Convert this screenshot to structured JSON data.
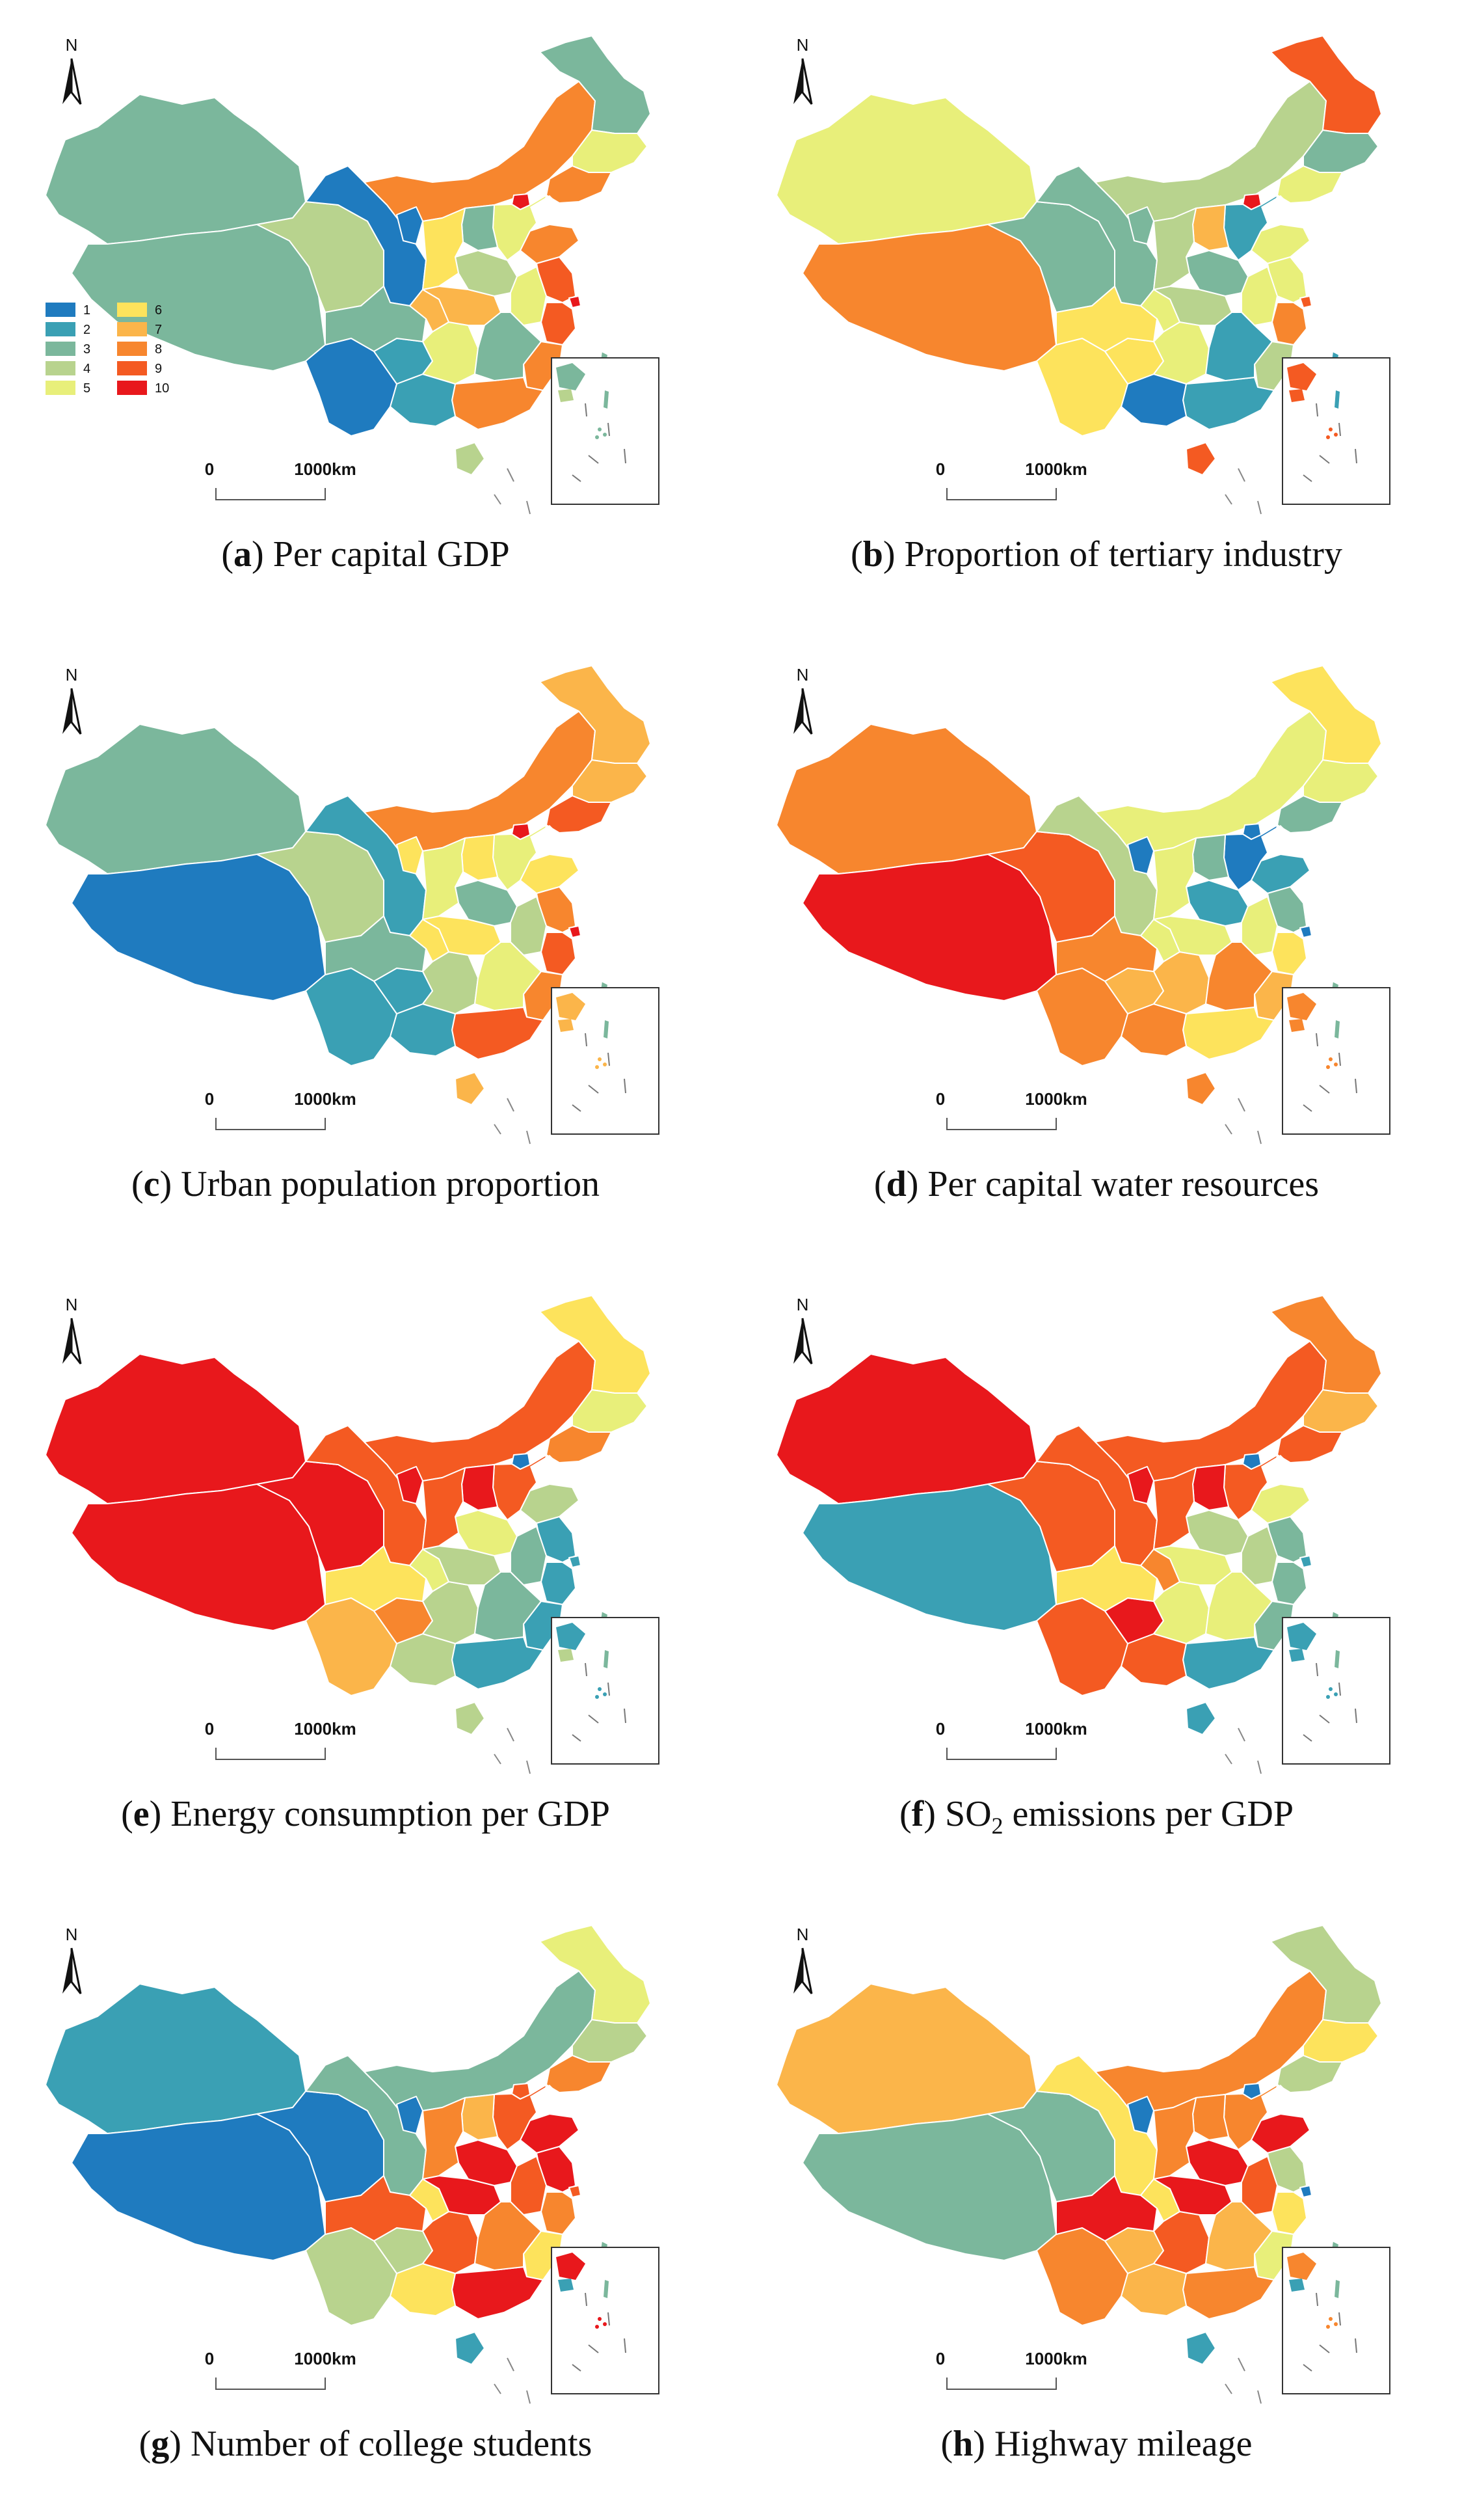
{
  "figure": {
    "north_label": "N",
    "scale_zero": "0",
    "scale_label": "1000km",
    "legend": {
      "classes": [
        "1",
        "2",
        "3",
        "4",
        "5",
        "6",
        "7",
        "8",
        "9",
        "10"
      ],
      "colors": [
        "#1f7bbf",
        "#3aa0b4",
        "#7bb79c",
        "#b8d38e",
        "#e8ef7a",
        "#fde35c",
        "#fbb54a",
        "#f7862e",
        "#f45a22",
        "#e8181c"
      ]
    }
  },
  "panels": [
    {
      "id": "a",
      "letter": "a",
      "title": "Per capital GDP",
      "has_legend": true,
      "classes": {
        "xinjiang": 3,
        "tibet": 3,
        "qinghai": 4,
        "gansu": 1,
        "innermongolia": 8,
        "heilongjiang": 3,
        "jilin": 5,
        "liaoning": 8,
        "beijing": 10,
        "hebei": 5,
        "shandong": 8,
        "jiangsu": 9,
        "zhejiang": 9,
        "shanghai": 10,
        "fujian": 8,
        "guangdong": 8,
        "guangxi": 2,
        "yunnan": 1,
        "guizhou": 2,
        "sichuan": 3,
        "chongqing": 7,
        "hunan": 5,
        "hubei": 7,
        "henan": 4,
        "shanxi": 3,
        "shaanxi": 6,
        "ningxia": 1,
        "anhui": 5,
        "jiangxi": 3,
        "hainan": 4,
        "taiwan": 3,
        "inset": 3
      }
    },
    {
      "id": "b",
      "letter": "b",
      "title": "Proportion of tertiary industry",
      "has_legend": false,
      "classes": {
        "xinjiang": 5,
        "tibet": 8,
        "qinghai": 3,
        "gansu": 3,
        "innermongolia": 4,
        "heilongjiang": 9,
        "jilin": 3,
        "liaoning": 5,
        "beijing": 10,
        "hebei": 2,
        "shandong": 5,
        "jiangsu": 5,
        "zhejiang": 8,
        "shanghai": 9,
        "fujian": 4,
        "guangdong": 2,
        "guangxi": 1,
        "yunnan": 6,
        "guizhou": 6,
        "sichuan": 6,
        "chongqing": 5,
        "hunan": 5,
        "hubei": 4,
        "henan": 3,
        "shanxi": 7,
        "shaanxi": 4,
        "ningxia": 3,
        "anhui": 5,
        "jiangxi": 2,
        "hainan": 9,
        "taiwan": 2,
        "inset": 9
      }
    },
    {
      "id": "c",
      "letter": "c",
      "title": "Urban population proportion",
      "has_legend": false,
      "classes": {
        "xinjiang": 3,
        "tibet": 1,
        "qinghai": 4,
        "gansu": 2,
        "innermongolia": 8,
        "heilongjiang": 7,
        "jilin": 7,
        "liaoning": 9,
        "beijing": 10,
        "hebei": 5,
        "shandong": 6,
        "jiangsu": 8,
        "zhejiang": 9,
        "shanghai": 10,
        "fujian": 8,
        "guangdong": 9,
        "guangxi": 2,
        "yunnan": 2,
        "guizhou": 2,
        "sichuan": 3,
        "chongqing": 6,
        "hunan": 4,
        "hubei": 6,
        "henan": 3,
        "shanxi": 6,
        "shaanxi": 5,
        "ningxia": 6,
        "anhui": 4,
        "jiangxi": 5,
        "hainan": 7,
        "taiwan": 3,
        "inset": 7
      }
    },
    {
      "id": "d",
      "letter": "d",
      "title": "Per capital water resources",
      "has_legend": false,
      "classes": {
        "xinjiang": 8,
        "tibet": 10,
        "qinghai": 9,
        "gansu": 4,
        "innermongolia": 5,
        "heilongjiang": 6,
        "jilin": 5,
        "liaoning": 3,
        "beijing": 1,
        "hebei": 1,
        "shandong": 2,
        "jiangsu": 3,
        "zhejiang": 6,
        "shanghai": 1,
        "fujian": 7,
        "guangdong": 6,
        "guangxi": 8,
        "yunnan": 8,
        "guizhou": 7,
        "sichuan": 8,
        "chongqing": 5,
        "hunan": 7,
        "hubei": 5,
        "henan": 2,
        "shanxi": 3,
        "shaanxi": 5,
        "ningxia": 1,
        "anhui": 5,
        "jiangxi": 8,
        "hainan": 8,
        "taiwan": 3,
        "inset": 8
      }
    },
    {
      "id": "e",
      "letter": "e",
      "title": "Energy consumption per GDP",
      "has_legend": false,
      "classes": {
        "xinjiang": 10,
        "tibet": 10,
        "qinghai": 10,
        "gansu": 9,
        "innermongolia": 9,
        "heilongjiang": 6,
        "jilin": 5,
        "liaoning": 8,
        "beijing": 1,
        "hebei": 9,
        "shandong": 4,
        "jiangsu": 2,
        "zhejiang": 2,
        "shanghai": 2,
        "fujian": 2,
        "guangdong": 2,
        "guangxi": 4,
        "yunnan": 7,
        "guizhou": 8,
        "sichuan": 6,
        "chongqing": 5,
        "hunan": 4,
        "hubei": 4,
        "henan": 5,
        "shanxi": 10,
        "shaanxi": 9,
        "ningxia": 10,
        "anhui": 3,
        "jiangxi": 3,
        "hainan": 4,
        "taiwan": 3,
        "inset": 2
      }
    },
    {
      "id": "f",
      "letter": "f",
      "title_pre": "SO",
      "title_sub": "2",
      "title_post": " emissions per GDP",
      "has_legend": false,
      "classes": {
        "xinjiang": 10,
        "tibet": 2,
        "qinghai": 9,
        "gansu": 9,
        "innermongolia": 9,
        "heilongjiang": 8,
        "jilin": 7,
        "liaoning": 9,
        "beijing": 1,
        "hebei": 9,
        "shandong": 5,
        "jiangsu": 3,
        "zhejiang": 3,
        "shanghai": 2,
        "fujian": 3,
        "guangdong": 2,
        "guangxi": 9,
        "yunnan": 9,
        "guizhou": 10,
        "sichuan": 6,
        "chongqing": 8,
        "hunan": 5,
        "hubei": 5,
        "henan": 4,
        "shanxi": 10,
        "shaanxi": 9,
        "ningxia": 10,
        "anhui": 4,
        "jiangxi": 5,
        "hainan": 2,
        "taiwan": 3,
        "inset": 2
      }
    },
    {
      "id": "g",
      "letter": "g",
      "title": "Number of college students",
      "has_legend": false,
      "classes": {
        "xinjiang": 2,
        "tibet": 1,
        "qinghai": 1,
        "gansu": 3,
        "innermongolia": 3,
        "heilongjiang": 5,
        "jilin": 4,
        "liaoning": 8,
        "beijing": 9,
        "hebei": 9,
        "shandong": 10,
        "jiangsu": 10,
        "zhejiang": 8,
        "shanghai": 9,
        "fujian": 6,
        "guangdong": 10,
        "guangxi": 6,
        "yunnan": 4,
        "guizhou": 4,
        "sichuan": 9,
        "chongqing": 6,
        "hunan": 9,
        "hubei": 10,
        "henan": 10,
        "shanxi": 7,
        "shaanxi": 8,
        "ningxia": 1,
        "anhui": 9,
        "jiangxi": 8,
        "hainan": 2,
        "taiwan": 3,
        "inset": 10
      }
    },
    {
      "id": "h",
      "letter": "h",
      "title": "Highway mileage",
      "has_legend": false,
      "classes": {
        "xinjiang": 7,
        "tibet": 3,
        "qinghai": 3,
        "gansu": 6,
        "innermongolia": 8,
        "heilongjiang": 4,
        "jilin": 6,
        "liaoning": 4,
        "beijing": 1,
        "hebei": 8,
        "shandong": 10,
        "jiangsu": 4,
        "zhejiang": 6,
        "shanghai": 1,
        "fujian": 5,
        "guangdong": 8,
        "guangxi": 7,
        "yunnan": 8,
        "guizhou": 7,
        "sichuan": 10,
        "chongqing": 6,
        "hunan": 9,
        "hubei": 10,
        "henan": 10,
        "shanxi": 8,
        "shaanxi": 8,
        "ningxia": 1,
        "anhui": 9,
        "jiangxi": 7,
        "hainan": 2,
        "taiwan": 3,
        "inset": 8
      }
    }
  ]
}
